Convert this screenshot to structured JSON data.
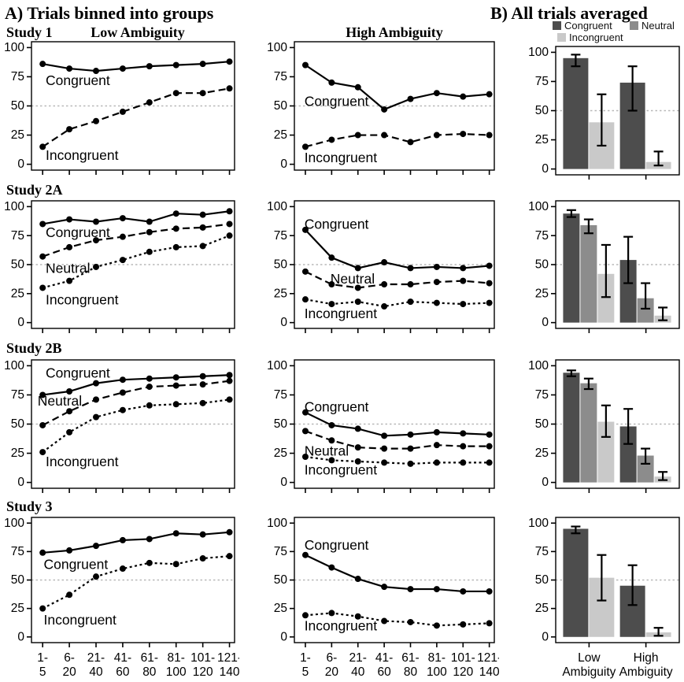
{
  "titles": {
    "panel_a": "A) Trials binned into groups",
    "panel_b": "B) All trials averaged"
  },
  "column_headers": {
    "low": "Low Ambiguity",
    "high": "High Ambiguity"
  },
  "studies": [
    "Study 1",
    "Study 2A",
    "Study 2B",
    "Study 3"
  ],
  "legend": [
    {
      "label": "Congruent",
      "color": "#4d4d4d"
    },
    {
      "label": "Neutral",
      "color": "#8c8c8c"
    },
    {
      "label": "Incongruent",
      "color": "#c9c9c9"
    }
  ],
  "axes": {
    "y_ticks": [
      0,
      25,
      50,
      75,
      100
    ],
    "reference_line": 50,
    "x_tick_labels": [
      [
        "1-",
        "5"
      ],
      [
        "6-",
        "20"
      ],
      [
        "21-",
        "40"
      ],
      [
        "41-",
        "60"
      ],
      [
        "61-",
        "80"
      ],
      [
        "81-",
        "100"
      ],
      [
        "101-",
        "120"
      ],
      [
        "121-",
        "140"
      ]
    ],
    "bar_group_labels": [
      [
        "Low",
        "Ambiguity"
      ],
      [
        "High",
        "Ambiguity"
      ]
    ]
  },
  "chart_data": [
    {
      "id": "study1-low",
      "type": "line",
      "title": "Study 1 Low Ambiguity",
      "ylim": [
        0,
        100
      ],
      "series": [
        {
          "name": "Congruent",
          "style": "solid",
          "values": [
            86,
            82,
            80,
            82,
            84,
            85,
            86,
            88
          ]
        },
        {
          "name": "Incongruent",
          "style": "dashed",
          "values": [
            15,
            30,
            37,
            45,
            53,
            61,
            61,
            65
          ]
        }
      ],
      "annotations": [
        {
          "text": "Congruent",
          "xf": 0.07,
          "y": 71
        },
        {
          "text": "Incongruent",
          "xf": 0.07,
          "y": 7
        }
      ]
    },
    {
      "id": "study1-high",
      "type": "line",
      "title": "Study 1 High Ambiguity",
      "ylim": [
        0,
        100
      ],
      "series": [
        {
          "name": "Congruent",
          "style": "solid",
          "values": [
            85,
            70,
            66,
            47,
            56,
            61,
            58,
            60
          ]
        },
        {
          "name": "Incongruent",
          "style": "dashed",
          "values": [
            15,
            21,
            25,
            25,
            19,
            25,
            26,
            25
          ]
        }
      ],
      "annotations": [
        {
          "text": "Congruent",
          "xf": 0.05,
          "y": 53
        },
        {
          "text": "Incongruent",
          "xf": 0.05,
          "y": 5
        }
      ]
    },
    {
      "id": "study1-bars",
      "type": "bar",
      "title": "Study 1 averaged",
      "ylim": [
        0,
        100
      ],
      "groups": [
        "Low Ambiguity",
        "High Ambiguity"
      ],
      "series": [
        {
          "name": "Congruent",
          "values": [
            95,
            74
          ],
          "err_low": [
            88,
            50
          ],
          "err_high": [
            98,
            88
          ]
        },
        {
          "name": "Incongruent",
          "values": [
            40,
            6
          ],
          "err_low": [
            20,
            3
          ],
          "err_high": [
            64,
            15
          ]
        }
      ]
    },
    {
      "id": "study2a-low",
      "type": "line",
      "title": "Study 2A Low Ambiguity",
      "ylim": [
        0,
        100
      ],
      "series": [
        {
          "name": "Congruent",
          "style": "solid",
          "values": [
            85,
            89,
            87,
            90,
            87,
            94,
            93,
            96
          ]
        },
        {
          "name": "Neutral",
          "style": "dashed",
          "values": [
            57,
            65,
            71,
            74,
            78,
            81,
            82,
            85
          ]
        },
        {
          "name": "Incongruent",
          "style": "dotted",
          "values": [
            30,
            36,
            48,
            54,
            61,
            65,
            66,
            75
          ]
        }
      ],
      "annotations": [
        {
          "text": "Congruent",
          "xf": 0.07,
          "y": 77
        },
        {
          "text": "Neutral",
          "xf": 0.07,
          "y": 46
        },
        {
          "text": "Incongruent",
          "xf": 0.07,
          "y": 19
        }
      ]
    },
    {
      "id": "study2a-high",
      "type": "line",
      "title": "Study 2A High Ambiguity",
      "ylim": [
        0,
        100
      ],
      "series": [
        {
          "name": "Congruent",
          "style": "solid",
          "values": [
            80,
            56,
            47,
            52,
            47,
            48,
            47,
            49
          ]
        },
        {
          "name": "Neutral",
          "style": "dashed",
          "values": [
            44,
            33,
            30,
            33,
            33,
            35,
            36,
            34
          ]
        },
        {
          "name": "Incongruent",
          "style": "dotted",
          "values": [
            20,
            16,
            18,
            14,
            18,
            17,
            16,
            17
          ]
        }
      ],
      "annotations": [
        {
          "text": "Congruent",
          "xf": 0.05,
          "y": 84
        },
        {
          "text": "Neutral",
          "xf": 0.18,
          "y": 37
        },
        {
          "text": "Incongruent",
          "xf": 0.05,
          "y": 7
        }
      ]
    },
    {
      "id": "study2a-bars",
      "type": "bar",
      "title": "Study 2A averaged",
      "ylim": [
        0,
        100
      ],
      "groups": [
        "Low Ambiguity",
        "High Ambiguity"
      ],
      "series": [
        {
          "name": "Congruent",
          "values": [
            94,
            54
          ],
          "err_low": [
            91,
            34
          ],
          "err_high": [
            97,
            74
          ]
        },
        {
          "name": "Neutral",
          "values": [
            84,
            21
          ],
          "err_low": [
            77,
            12
          ],
          "err_high": [
            89,
            34
          ]
        },
        {
          "name": "Incongruent",
          "values": [
            42,
            6
          ],
          "err_low": [
            22,
            2
          ],
          "err_high": [
            67,
            13
          ]
        }
      ]
    },
    {
      "id": "study2b-low",
      "type": "line",
      "title": "Study 2B Low Ambiguity",
      "ylim": [
        0,
        100
      ],
      "series": [
        {
          "name": "Congruent",
          "style": "solid",
          "values": [
            75,
            78,
            85,
            88,
            89,
            90,
            91,
            92
          ]
        },
        {
          "name": "Neutral",
          "style": "dashed",
          "values": [
            49,
            61,
            71,
            77,
            82,
            83,
            84,
            87
          ]
        },
        {
          "name": "Incongruent",
          "style": "dotted",
          "values": [
            26,
            43,
            56,
            62,
            66,
            67,
            68,
            71
          ]
        }
      ],
      "annotations": [
        {
          "text": "Congruent",
          "xf": 0.07,
          "y": 93
        },
        {
          "text": "Neutral",
          "xf": 0.03,
          "y": 69
        },
        {
          "text": "Incongruent",
          "xf": 0.07,
          "y": 17
        }
      ]
    },
    {
      "id": "study2b-high",
      "type": "line",
      "title": "Study 2B High Ambiguity",
      "ylim": [
        0,
        100
      ],
      "series": [
        {
          "name": "Congruent",
          "style": "solid",
          "values": [
            60,
            49,
            46,
            40,
            41,
            43,
            42,
            41
          ]
        },
        {
          "name": "Neutral",
          "style": "dashed",
          "values": [
            44,
            36,
            30,
            29,
            29,
            32,
            31,
            31
          ]
        },
        {
          "name": "Incongruent",
          "style": "dotted",
          "values": [
            22,
            19,
            18,
            17,
            16,
            17,
            17,
            17
          ]
        }
      ],
      "annotations": [
        {
          "text": "Congruent",
          "xf": 0.05,
          "y": 64
        },
        {
          "text": "Neutral",
          "xf": 0.05,
          "y": 26
        },
        {
          "text": "Incongruent",
          "xf": 0.05,
          "y": 10
        }
      ]
    },
    {
      "id": "study2b-bars",
      "type": "bar",
      "title": "Study 2B averaged",
      "ylim": [
        0,
        100
      ],
      "groups": [
        "Low Ambiguity",
        "High Ambiguity"
      ],
      "series": [
        {
          "name": "Congruent",
          "values": [
            94,
            48
          ],
          "err_low": [
            91,
            33
          ],
          "err_high": [
            96,
            63
          ]
        },
        {
          "name": "Neutral",
          "values": [
            85,
            23
          ],
          "err_low": [
            80,
            16
          ],
          "err_high": [
            89,
            29
          ]
        },
        {
          "name": "Incongruent",
          "values": [
            52,
            5
          ],
          "err_low": [
            39,
            2
          ],
          "err_high": [
            66,
            9
          ]
        }
      ]
    },
    {
      "id": "study3-low",
      "type": "line",
      "title": "Study 3 Low Ambiguity",
      "ylim": [
        0,
        100
      ],
      "series": [
        {
          "name": "Congruent",
          "style": "solid",
          "values": [
            74,
            76,
            80,
            85,
            86,
            91,
            90,
            92
          ]
        },
        {
          "name": "Incongruent",
          "style": "dotted",
          "values": [
            25,
            37,
            53,
            60,
            65,
            64,
            69,
            71
          ]
        }
      ],
      "annotations": [
        {
          "text": "Congruent",
          "xf": 0.06,
          "y": 63
        },
        {
          "text": "Incongruent",
          "xf": 0.06,
          "y": 14
        }
      ]
    },
    {
      "id": "study3-high",
      "type": "line",
      "title": "Study 3 High Ambiguity",
      "ylim": [
        0,
        100
      ],
      "series": [
        {
          "name": "Congruent",
          "style": "solid",
          "values": [
            72,
            61,
            51,
            44,
            42,
            42,
            40,
            40
          ]
        },
        {
          "name": "Incongruent",
          "style": "dotted",
          "values": [
            19,
            21,
            18,
            14,
            13,
            10,
            11,
            12
          ]
        }
      ],
      "annotations": [
        {
          "text": "Congruent",
          "xf": 0.05,
          "y": 80
        },
        {
          "text": "Incongruent",
          "xf": 0.05,
          "y": 9
        }
      ]
    },
    {
      "id": "study3-bars",
      "type": "bar",
      "title": "Study 3 averaged",
      "ylim": [
        0,
        100
      ],
      "groups": [
        "Low Ambiguity",
        "High Ambiguity"
      ],
      "series": [
        {
          "name": "Congruent",
          "values": [
            95,
            45
          ],
          "err_low": [
            91,
            28
          ],
          "err_high": [
            97,
            63
          ]
        },
        {
          "name": "Incongruent",
          "values": [
            52,
            4
          ],
          "err_low": [
            32,
            1
          ],
          "err_high": [
            72,
            8
          ]
        }
      ]
    }
  ]
}
